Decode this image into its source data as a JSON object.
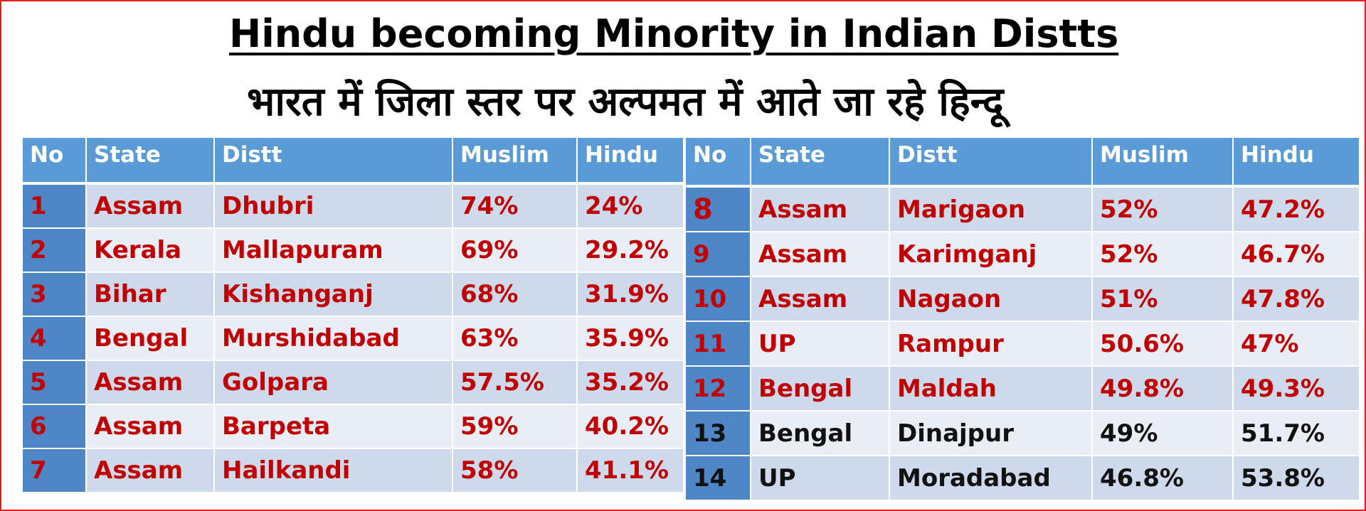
{
  "title_en": "Hindu becoming Minority in Indian Distts",
  "title_hi": "भारत में जिला स्तर पर अल्पमत में आते जा रहे हिन्दू",
  "headers": [
    "No",
    "State",
    "Distt",
    "Muslim",
    "Hindu"
  ],
  "left_rows": [
    {
      "no": "1",
      "state": "Assam",
      "distt": "Dhubri",
      "muslim": "74%",
      "hindu": "24%"
    },
    {
      "no": "2",
      "state": "Kerala",
      "distt": "Mallapuram",
      "muslim": "69%",
      "hindu": "29.2%"
    },
    {
      "no": "3",
      "state": "Bihar",
      "distt": "Kishanganj",
      "muslim": "68%",
      "hindu": "31.9%"
    },
    {
      "no": "4",
      "state": "Bengal",
      "distt": "Murshidabad",
      "muslim": "63%",
      "hindu": "35.9%"
    },
    {
      "no": "5",
      "state": "Assam",
      "distt": "Golpara",
      "muslim": "57.5%",
      "hindu": "35.2%"
    },
    {
      "no": "6",
      "state": "Assam",
      "distt": "Barpeta",
      "muslim": "59%",
      "hindu": "40.2%"
    },
    {
      "no": "7",
      "state": "Assam",
      "distt": "Hailkandi",
      "muslim": "58%",
      "hindu": "41.1%"
    }
  ],
  "right_rows": [
    {
      "no": "8",
      "state": "Assam",
      "distt": "Marigaon",
      "muslim": "52%",
      "hindu": "47.2%"
    },
    {
      "no": "9",
      "state": "Assam",
      "distt": "Karimganj",
      "muslim": "52%",
      "hindu": "46.7%"
    },
    {
      "no": "10",
      "state": "Assam",
      "distt": "Nagaon",
      "muslim": "51%",
      "hindu": "47.8%"
    },
    {
      "no": "11",
      "state": "UP",
      "distt": "Rampur",
      "muslim": "50.6%",
      "hindu": "47%"
    },
    {
      "no": "12",
      "state": "Bengal",
      "distt": "Maldah",
      "muslim": "49.8%",
      "hindu": "49.3%"
    },
    {
      "no": "13",
      "state": "Bengal",
      "distt": "Dinajpur",
      "muslim": "49%",
      "hindu": "51.7%"
    },
    {
      "no": "14",
      "state": "UP",
      "distt": "Moradabad",
      "muslim": "46.8%",
      "hindu": "53.8%"
    }
  ],
  "colors": {
    "header_bg": "#5b9bd5",
    "number_cell_bg": "#4f86c6",
    "row_odd": "#cfd9ec",
    "row_even": "#e9edf6",
    "text_red": "#c00000",
    "frame_red": "#e61e1e"
  }
}
